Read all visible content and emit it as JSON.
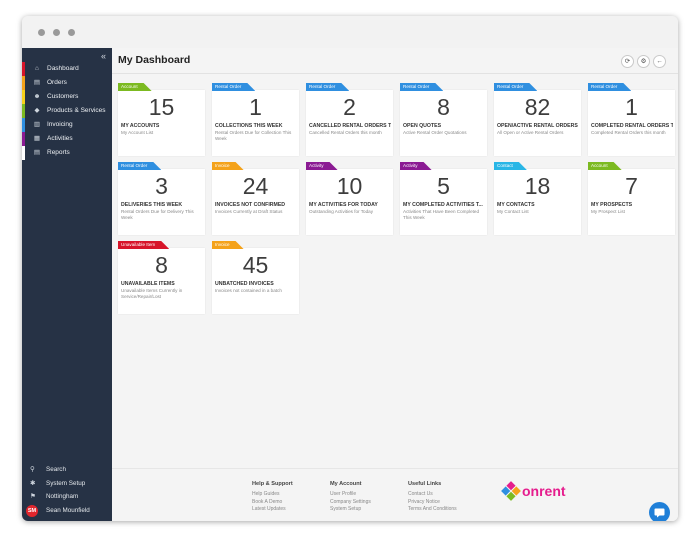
{
  "colors": {
    "account": "#7cba21",
    "rental": "#2f8fe0",
    "invoice": "#f4a21a",
    "activity": "#8b1b93",
    "contact": "#29b6e6",
    "unavailable": "#d7152a",
    "sidebar": "#263245",
    "logo_pink": "#e51d8d"
  },
  "sidebar": {
    "collapse_icon": "double-chevron-left",
    "items": [
      {
        "label": "Dashboard",
        "icon": "home-icon",
        "color": "#d7152a"
      },
      {
        "label": "Orders",
        "icon": "orders-icon",
        "color": "#f4a21a"
      },
      {
        "label": "Customers",
        "icon": "customers-icon",
        "color": "#f7d11a"
      },
      {
        "label": "Products & Services",
        "icon": "products-icon",
        "color": "#7cba21"
      },
      {
        "label": "Invoicing",
        "icon": "invoicing-icon",
        "color": "#2f8fe0"
      },
      {
        "label": "Activities",
        "icon": "activities-icon",
        "color": "#8b1b93"
      },
      {
        "label": "Reports",
        "icon": "reports-icon",
        "color": "#ffffff"
      }
    ],
    "bottom": [
      {
        "label": "Search",
        "icon": "search-icon"
      },
      {
        "label": "System Setup",
        "icon": "gear-icon"
      },
      {
        "label": "Nottingham",
        "icon": "location-icon"
      },
      {
        "label": "Sean Mounfield",
        "icon": "avatar",
        "initials": "SM"
      }
    ]
  },
  "header": {
    "title": "My Dashboard",
    "buttons": [
      {
        "name": "refresh-button",
        "icon": "refresh-icon",
        "glyph": "⟳"
      },
      {
        "name": "settings-button",
        "icon": "gear-icon",
        "glyph": "⚙"
      },
      {
        "name": "back-button",
        "icon": "back-arrow-icon",
        "glyph": "←"
      }
    ]
  },
  "cards": [
    {
      "tag": "Account",
      "tag_color": "#7cba21",
      "value": "15",
      "title": "MY ACCOUNTS",
      "desc": "My Account List"
    },
    {
      "tag": "Rental Order",
      "tag_color": "#2f8fe0",
      "value": "1",
      "title": "COLLECTIONS THIS WEEK",
      "desc": "Rental Orders Due for Collection This Week"
    },
    {
      "tag": "Rental Order",
      "tag_color": "#2f8fe0",
      "value": "2",
      "title": "CANCELLED RENTAL ORDERS T...",
      "desc": "Cancelled Rental Orders this month"
    },
    {
      "tag": "Rental Order",
      "tag_color": "#2f8fe0",
      "value": "8",
      "title": "OPEN QUOTES",
      "desc": "Active Rental Order Quotations"
    },
    {
      "tag": "Rental Order",
      "tag_color": "#2f8fe0",
      "value": "82",
      "title": "OPEN/ACTIVE RENTAL ORDERS",
      "desc": "All Open or Active Rental Orders"
    },
    {
      "tag": "Rental Order",
      "tag_color": "#2f8fe0",
      "value": "1",
      "title": "COMPLETED RENTAL ORDERS T...",
      "desc": "Completed Rental Orders this month"
    },
    {
      "tag": "Rental Order",
      "tag_color": "#2f8fe0",
      "value": "3",
      "title": "DELIVERIES THIS WEEK",
      "desc": "Rental Orders Due for Delivery This Week"
    },
    {
      "tag": "Invoice",
      "tag_color": "#f4a21a",
      "value": "24",
      "title": "INVOICES NOT CONFIRMED",
      "desc": "Invoices Currently at Draft Status"
    },
    {
      "tag": "Activity",
      "tag_color": "#8b1b93",
      "value": "10",
      "title": "MY ACTIVITIES FOR TODAY",
      "desc": "Outstanding Activities for Today"
    },
    {
      "tag": "Activity",
      "tag_color": "#8b1b93",
      "value": "5",
      "title": "MY COMPLETED ACTIVITIES T...",
      "desc": "Activities That Have Been Completed This Week"
    },
    {
      "tag": "Contact",
      "tag_color": "#29b6e6",
      "value": "18",
      "title": "MY CONTACTS",
      "desc": "My Contact List"
    },
    {
      "tag": "Account",
      "tag_color": "#7cba21",
      "value": "7",
      "title": "MY PROSPECTS",
      "desc": "My Prospect List"
    },
    {
      "tag": "Unavailable Item",
      "tag_color": "#d7152a",
      "value": "8",
      "title": "UNAVAILABLE ITEMS",
      "desc": "Unavailable Items Currently in Service/Repair/Lost"
    },
    {
      "tag": "Invoice",
      "tag_color": "#f4a21a",
      "value": "45",
      "title": "UNBATCHED INVOICES",
      "desc": "Invoices not contained in a batch"
    }
  ],
  "footer": {
    "help": {
      "heading": "Help & Support",
      "links": [
        "Help Guides",
        "Book A Demo",
        "Latest Updates"
      ]
    },
    "account": {
      "heading": "My Account",
      "links": [
        "User Profile",
        "Company Settings",
        "System Setup"
      ]
    },
    "useful": {
      "heading": "Useful Links",
      "links": [
        "Contact Us",
        "Privacy Notice",
        "Terms And Conditions"
      ]
    },
    "logo_text": "onrent",
    "chat_icon": "chat-icon"
  }
}
